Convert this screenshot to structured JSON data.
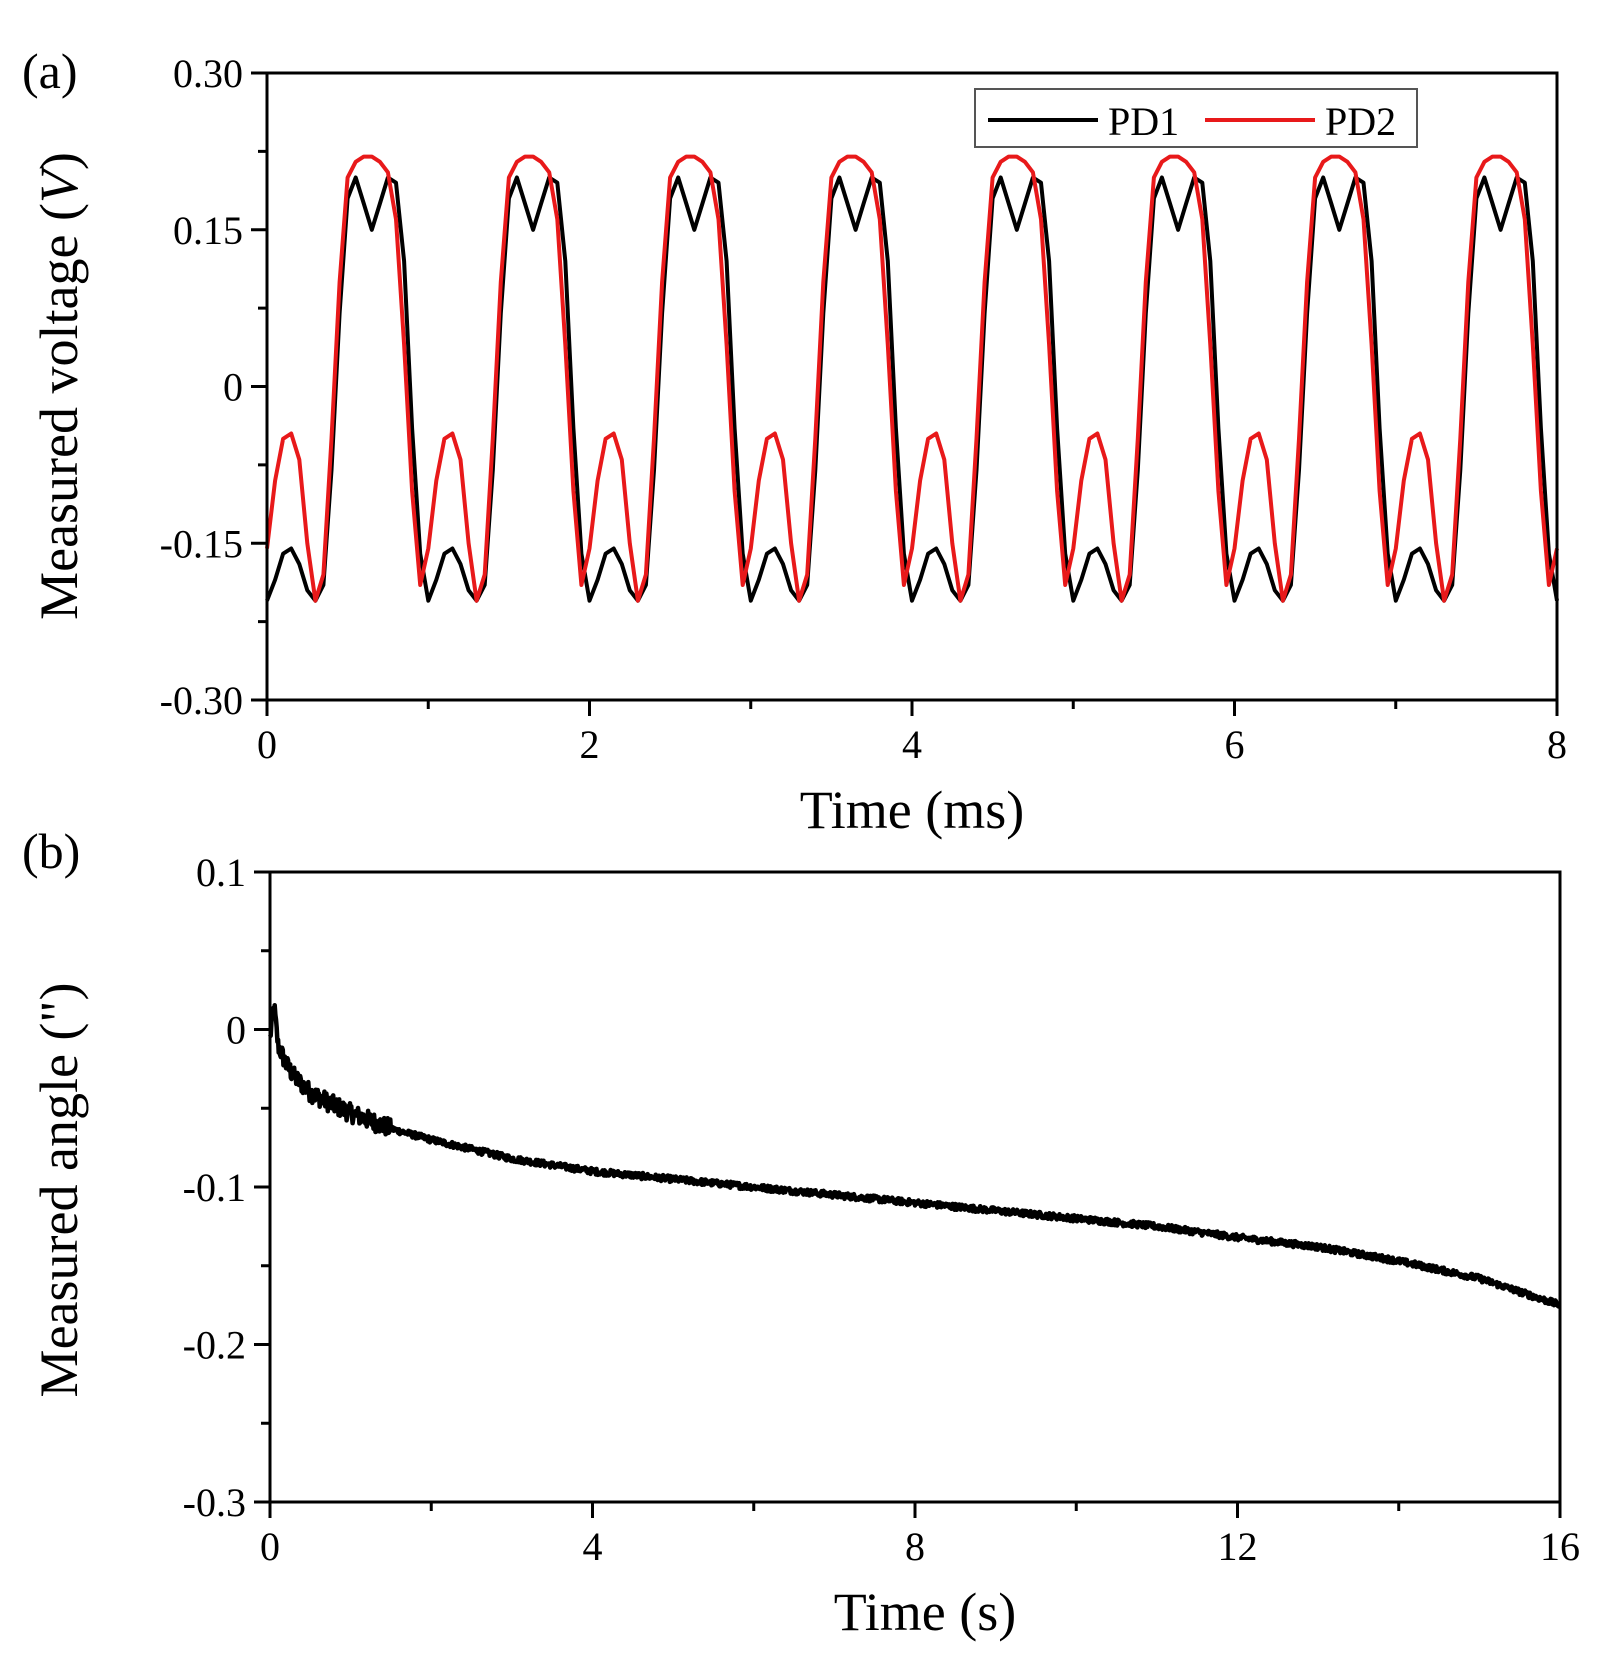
{
  "chart_data": [
    {
      "type": "line",
      "panel_label": "(a)",
      "xlabel": "Time (ms)",
      "ylabel": "Measured voltage (",
      "ylabel_unit": "V",
      "ylabel_close": ")",
      "xlim": [
        0,
        8
      ],
      "ylim": [
        -0.3,
        0.3
      ],
      "xticks": [
        0,
        2,
        4,
        6,
        8
      ],
      "xtick_labels": [
        "0",
        "2",
        "4",
        "6",
        "8"
      ],
      "yticks": [
        -0.3,
        -0.15,
        0,
        0.15,
        0.3
      ],
      "ytick_labels": [
        "-0.30",
        "-0.15",
        "0",
        "0.15",
        "0.30"
      ],
      "legend_position": "top-right",
      "period_ms": 1.0,
      "series": [
        {
          "name": "PD1",
          "color": "#000000",
          "x": [
            0,
            0.05,
            0.1,
            0.15,
            0.2,
            0.25,
            0.3,
            0.35,
            0.4,
            0.45,
            0.5,
            0.55,
            0.6,
            0.65,
            0.7,
            0.75,
            0.8,
            0.85,
            0.9,
            0.95,
            1.0
          ],
          "values": [
            -0.205,
            -0.185,
            -0.16,
            -0.155,
            -0.17,
            -0.195,
            -0.205,
            -0.19,
            -0.08,
            0.07,
            0.18,
            0.2,
            0.175,
            0.15,
            0.175,
            0.2,
            0.195,
            0.12,
            -0.04,
            -0.16,
            -0.205
          ]
        },
        {
          "name": "PD2",
          "color": "#e8191a",
          "x": [
            0,
            0.05,
            0.1,
            0.15,
            0.2,
            0.25,
            0.3,
            0.35,
            0.4,
            0.45,
            0.5,
            0.55,
            0.6,
            0.65,
            0.7,
            0.75,
            0.8,
            0.85,
            0.9,
            0.95,
            1.0
          ],
          "values": [
            -0.155,
            -0.09,
            -0.05,
            -0.045,
            -0.07,
            -0.15,
            -0.205,
            -0.18,
            -0.05,
            0.1,
            0.2,
            0.215,
            0.22,
            0.22,
            0.215,
            0.205,
            0.16,
            0.04,
            -0.1,
            -0.19,
            -0.155
          ]
        }
      ]
    },
    {
      "type": "line",
      "panel_label": "(b)",
      "xlabel": "Time (s)",
      "ylabel": "Measured angle  (\")",
      "xlim": [
        0,
        16
      ],
      "ylim": [
        -0.3,
        0.1
      ],
      "xticks": [
        0,
        4,
        8,
        12,
        16
      ],
      "xtick_labels": [
        "0",
        "4",
        "8",
        "12",
        "16"
      ],
      "yticks": [
        -0.3,
        -0.2,
        -0.1,
        0,
        0.1
      ],
      "ytick_labels": [
        "-0.3",
        "-0.2",
        "-0.1",
        "0",
        "0.1"
      ],
      "series": [
        {
          "name": "Measured angle",
          "color": "#000000",
          "x": [
            0,
            0.05,
            0.1,
            0.2,
            0.3,
            0.5,
            0.75,
            1,
            1.5,
            2,
            3,
            4,
            5,
            6,
            7,
            8,
            9,
            10,
            11,
            12,
            13,
            14,
            15,
            16
          ],
          "values": [
            -0.005,
            0.015,
            -0.01,
            -0.022,
            -0.03,
            -0.04,
            -0.047,
            -0.053,
            -0.063,
            -0.07,
            -0.082,
            -0.09,
            -0.095,
            -0.1,
            -0.105,
            -0.11,
            -0.115,
            -0.12,
            -0.125,
            -0.132,
            -0.138,
            -0.147,
            -0.158,
            -0.175
          ]
        }
      ]
    }
  ]
}
